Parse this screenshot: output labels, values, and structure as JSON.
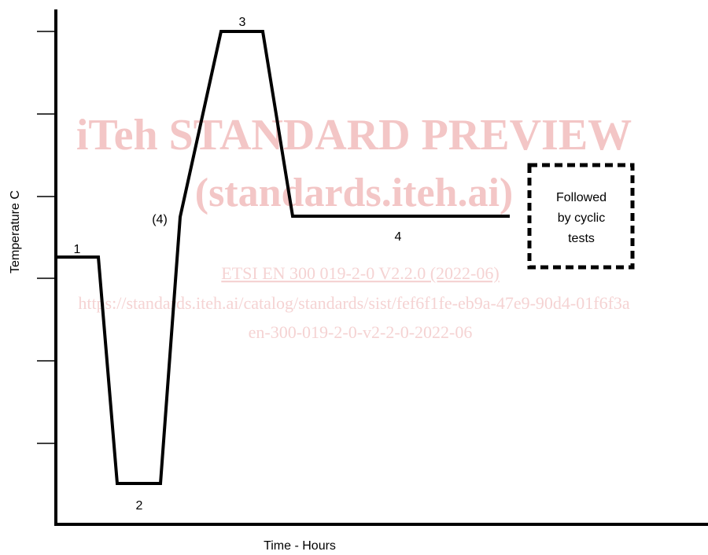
{
  "watermark": {
    "line1": "iTeh STANDARD PREVIEW",
    "line2": "(standards.iteh.ai)",
    "line3": "ETSI EN 300 019-2-0 V2.2.0 (2022-06)",
    "line4": "https://standards.iteh.ai/catalog/standards/sist/fef6f1fe-eb9a-47e9-90d4-01f6f3a",
    "line5": "en-300-019-2-0-v2-2-0-2022-06"
  },
  "axes": {
    "ylabel": "Temperature C",
    "xlabel": "Time - Hours"
  },
  "profile": {
    "segment_labels": [
      "1",
      "2",
      "(4)",
      "3",
      "4"
    ]
  },
  "box": {
    "line1": "Followed",
    "line2": "by cyclic",
    "line3": "tests"
  }
}
